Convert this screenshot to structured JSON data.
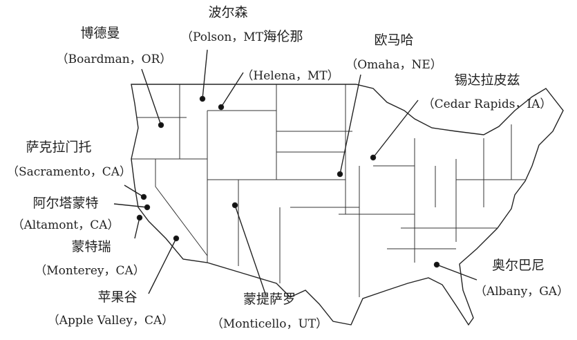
{
  "map": {
    "region": "United States",
    "line_color": "#222222",
    "sites": [
      {
        "id": "boardman",
        "zh": "博德曼",
        "en": "（Boardman，OR）"
      },
      {
        "id": "polson",
        "zh": "波尔森",
        "en": "（Polson，MT）"
      },
      {
        "id": "helena",
        "zh": "海伦那",
        "en": "（Helena，MT）"
      },
      {
        "id": "omaha",
        "zh": "欧马哈",
        "en": "（Omaha，NE）"
      },
      {
        "id": "cedar-rapids",
        "zh": "锡达拉皮兹",
        "en": "（Cedar Rapids，IA）"
      },
      {
        "id": "sacramento",
        "zh": "萨克拉门托",
        "en": "（Sacramento，CA）"
      },
      {
        "id": "altamont",
        "zh": "阿尔塔蒙特",
        "en": "（Altamont，CA）"
      },
      {
        "id": "monterey",
        "zh": "蒙特瑞",
        "en": "（Monterey，CA）"
      },
      {
        "id": "apple-valley",
        "zh": "苹果谷",
        "en": "（Apple Valley，CA）"
      },
      {
        "id": "monticello",
        "zh": "蒙提萨罗",
        "en": "（Monticello，UT）"
      },
      {
        "id": "albany",
        "zh": "奥尔巴尼",
        "en": "（Albany，GA）"
      }
    ]
  }
}
